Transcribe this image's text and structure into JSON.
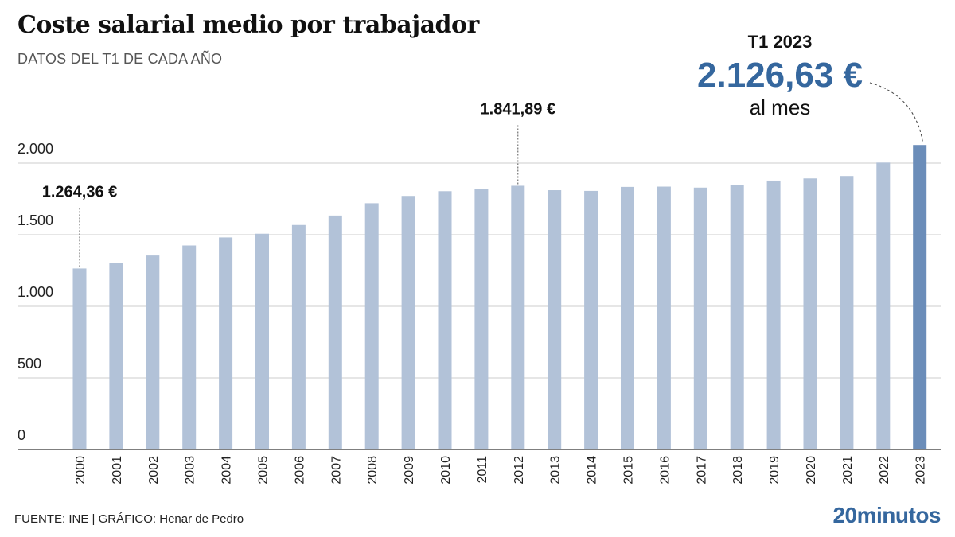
{
  "title": "Coste salarial medio por trabajador",
  "subtitle": "DATOS DEL T1 DE CADA AÑO",
  "highlight": {
    "period": "T1 2023",
    "value": "2.126,63 €",
    "unit": "al mes"
  },
  "footer": {
    "source": "FUENTE: INE  |  GRÁFICO: Henar de Pedro",
    "brand": "20minutos"
  },
  "colors": {
    "bar": "#b2c2d8",
    "bar_highlight": "#6b8db9",
    "highlight_text": "#35679e",
    "grid": "#cccccc"
  },
  "chart_data": {
    "type": "bar",
    "categories": [
      "2000",
      "2001",
      "2002",
      "2003",
      "2004",
      "2005",
      "2006",
      "2007",
      "2008",
      "2009",
      "2010",
      "2011",
      "2012",
      "2013",
      "2014",
      "2015",
      "2016",
      "2017",
      "2018",
      "2019",
      "2020",
      "2021",
      "2022",
      "2023"
    ],
    "values": [
      1264.36,
      1303,
      1355,
      1425,
      1481,
      1507,
      1568,
      1634,
      1720,
      1771,
      1804,
      1822,
      1841.89,
      1811,
      1806,
      1834,
      1836,
      1829,
      1846,
      1878,
      1893,
      1910,
      2004,
      2126.63
    ],
    "ylim": [
      0,
      2000
    ],
    "yticks": [
      0,
      500,
      1000,
      1500,
      2000
    ],
    "ytick_labels": [
      "0",
      "500",
      "1.000",
      "1.500",
      "2.000"
    ],
    "grid": true,
    "highlight_index": 23,
    "annotations": [
      {
        "index": 0,
        "text": "1.264,36 €"
      },
      {
        "index": 12,
        "text": "1.841,89 €"
      }
    ]
  }
}
